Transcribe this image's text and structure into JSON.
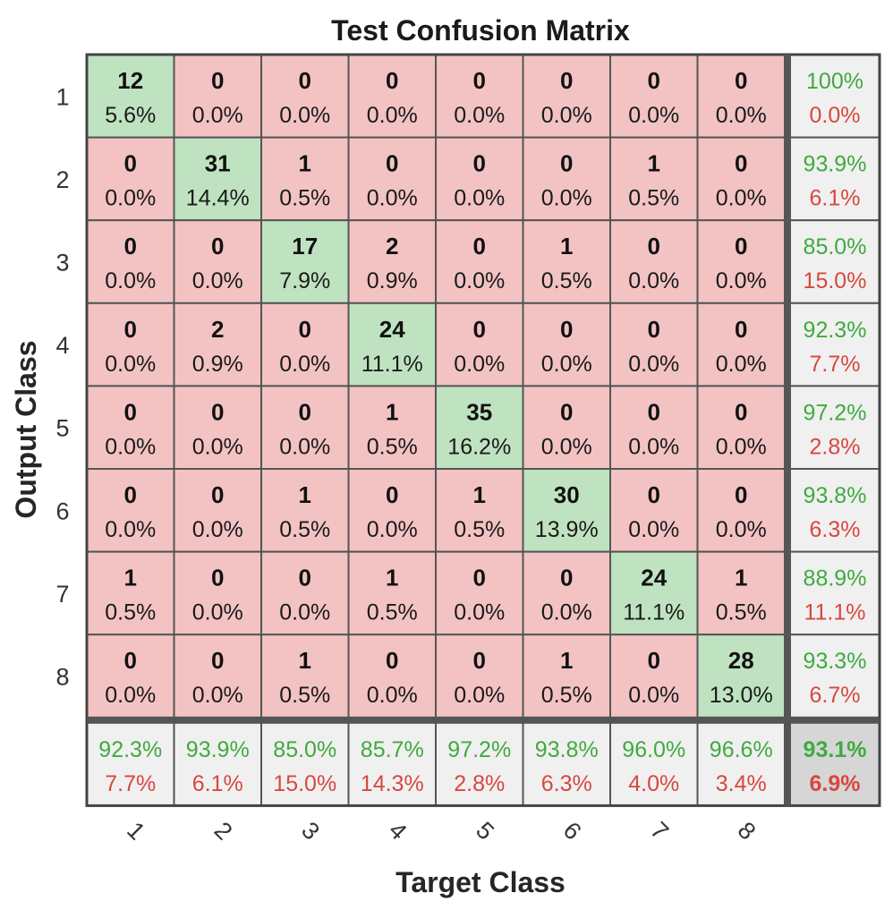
{
  "chart_data": {
    "type": "heatmap",
    "title": "Test Confusion Matrix",
    "xlabel": "Target Class",
    "ylabel": "Output Class",
    "classes": [
      "1",
      "2",
      "3",
      "4",
      "5",
      "6",
      "7",
      "8"
    ],
    "matrix": [
      [
        12,
        0,
        0,
        0,
        0,
        0,
        0,
        0
      ],
      [
        0,
        31,
        1,
        0,
        0,
        0,
        1,
        0
      ],
      [
        0,
        0,
        17,
        2,
        0,
        1,
        0,
        0
      ],
      [
        0,
        2,
        0,
        24,
        0,
        0,
        0,
        0
      ],
      [
        0,
        0,
        0,
        1,
        35,
        0,
        0,
        0
      ],
      [
        0,
        0,
        1,
        0,
        1,
        30,
        0,
        0
      ],
      [
        1,
        0,
        0,
        1,
        0,
        0,
        24,
        1
      ],
      [
        0,
        0,
        1,
        0,
        0,
        1,
        0,
        28
      ]
    ],
    "matrix_percent": [
      [
        "5.6%",
        "0.0%",
        "0.0%",
        "0.0%",
        "0.0%",
        "0.0%",
        "0.0%",
        "0.0%"
      ],
      [
        "0.0%",
        "14.4%",
        "0.5%",
        "0.0%",
        "0.0%",
        "0.0%",
        "0.5%",
        "0.0%"
      ],
      [
        "0.0%",
        "0.0%",
        "7.9%",
        "0.9%",
        "0.0%",
        "0.5%",
        "0.0%",
        "0.0%"
      ],
      [
        "0.0%",
        "0.9%",
        "0.0%",
        "11.1%",
        "0.0%",
        "0.0%",
        "0.0%",
        "0.0%"
      ],
      [
        "0.0%",
        "0.0%",
        "0.0%",
        "0.5%",
        "16.2%",
        "0.0%",
        "0.0%",
        "0.0%"
      ],
      [
        "0.0%",
        "0.0%",
        "0.5%",
        "0.0%",
        "0.5%",
        "13.9%",
        "0.0%",
        "0.0%"
      ],
      [
        "0.5%",
        "0.0%",
        "0.0%",
        "0.5%",
        "0.0%",
        "0.0%",
        "11.1%",
        "0.5%"
      ],
      [
        "0.0%",
        "0.0%",
        "0.5%",
        "0.0%",
        "0.0%",
        "0.5%",
        "0.0%",
        "13.0%"
      ]
    ],
    "row_summary": [
      {
        "correct": "100%",
        "error": "0.0%"
      },
      {
        "correct": "93.9%",
        "error": "6.1%"
      },
      {
        "correct": "85.0%",
        "error": "15.0%"
      },
      {
        "correct": "92.3%",
        "error": "7.7%"
      },
      {
        "correct": "97.2%",
        "error": "2.8%"
      },
      {
        "correct": "93.8%",
        "error": "6.3%"
      },
      {
        "correct": "88.9%",
        "error": "11.1%"
      },
      {
        "correct": "93.3%",
        "error": "6.7%"
      }
    ],
    "col_summary": [
      {
        "correct": "92.3%",
        "error": "7.7%"
      },
      {
        "correct": "93.9%",
        "error": "6.1%"
      },
      {
        "correct": "85.0%",
        "error": "15.0%"
      },
      {
        "correct": "85.7%",
        "error": "14.3%"
      },
      {
        "correct": "97.2%",
        "error": "2.8%"
      },
      {
        "correct": "93.8%",
        "error": "6.3%"
      },
      {
        "correct": "96.0%",
        "error": "4.0%"
      },
      {
        "correct": "96.6%",
        "error": "3.4%"
      }
    ],
    "overall": {
      "correct": "93.1%",
      "error": "6.9%"
    },
    "colors": {
      "diagonal": "#bfe3c0",
      "off_diagonal": "#f3c3c3",
      "summary": "#f0f0f0",
      "overall": "#d6d6d6",
      "green_text": "#3faa3f",
      "red_text": "#d9473f",
      "grid": "#555555"
    }
  }
}
